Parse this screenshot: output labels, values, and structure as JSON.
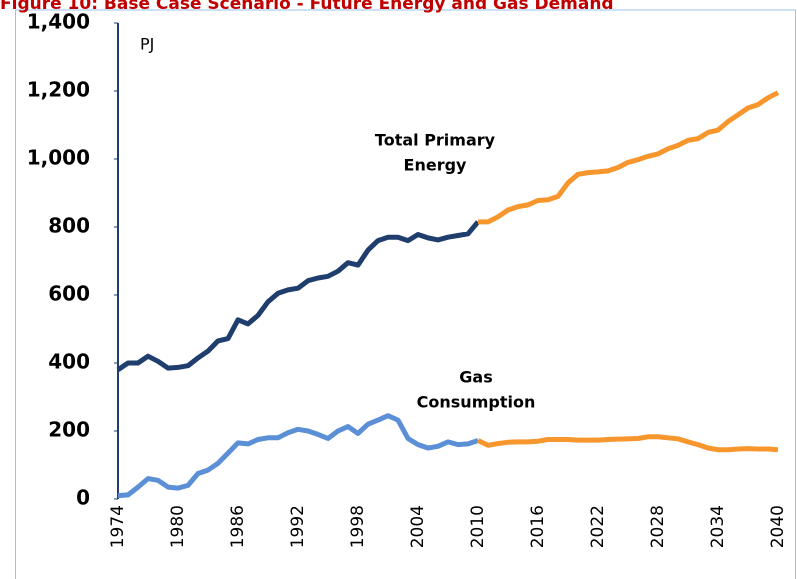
{
  "chart_data": {
    "type": "line",
    "title": "Figure 10: Base Case Scenario - Future Energy and Gas Demand",
    "y_unit": "PJ",
    "annotations": [
      [
        "Total Primary",
        "Energy"
      ],
      [
        "Gas",
        "Consumption"
      ]
    ],
    "xlim": [
      1974,
      2040
    ],
    "xticks": [
      1974,
      1980,
      1986,
      1992,
      1998,
      2004,
      2010,
      2016,
      2022,
      2028,
      2034,
      2040
    ],
    "ylim": [
      0,
      1400
    ],
    "yticks": [
      0,
      200,
      400,
      600,
      800,
      {
        "value": 1000,
        "label": "1,000"
      },
      {
        "value": 1200,
        "label": "1,200"
      },
      {
        "value": 1400,
        "label": "1,400"
      }
    ],
    "grid": false,
    "series": [
      {
        "color": "#1f3e6e",
        "x": [
          1974,
          1975,
          1976,
          1977,
          1978,
          1979,
          1980,
          1981,
          1982,
          1983,
          1984,
          1985,
          1986,
          1987,
          1988,
          1989,
          1990,
          1991,
          1992,
          1993,
          1994,
          1995,
          1996,
          1997,
          1998,
          1999,
          2000,
          2001,
          2002,
          2003,
          2004,
          2005,
          2006,
          2007,
          2008,
          2009,
          2010
        ],
        "values": [
          380,
          400,
          400,
          420,
          405,
          385,
          387,
          392,
          415,
          435,
          465,
          472,
          527,
          515,
          540,
          580,
          605,
          615,
          620,
          642,
          650,
          655,
          670,
          695,
          688,
          732,
          760,
          770,
          770,
          760,
          778,
          768,
          762,
          770,
          775,
          780,
          815
        ]
      },
      {
        "color": "#f7962d",
        "x": [
          2010,
          2011,
          2012,
          2013,
          2014,
          2015,
          2016,
          2017,
          2018,
          2019,
          2020,
          2021,
          2022,
          2023,
          2024,
          2025,
          2026,
          2027,
          2028,
          2029,
          2030,
          2031,
          2032,
          2033,
          2034,
          2035,
          2036,
          2037,
          2038,
          2039,
          2040
        ],
        "values": [
          815,
          815,
          830,
          850,
          860,
          865,
          878,
          880,
          890,
          930,
          955,
          960,
          962,
          965,
          975,
          990,
          998,
          1008,
          1015,
          1030,
          1040,
          1055,
          1060,
          1078,
          1085,
          1110,
          1130,
          1150,
          1160,
          1180,
          1195
        ]
      },
      {
        "color": "#5b8fd6",
        "x": [
          1974,
          1975,
          1976,
          1977,
          1978,
          1979,
          1980,
          1981,
          1982,
          1983,
          1984,
          1985,
          1986,
          1987,
          1988,
          1989,
          1990,
          1991,
          1992,
          1993,
          1994,
          1995,
          1996,
          1997,
          1998,
          1999,
          2000,
          2001,
          2002,
          2003,
          2004,
          2005,
          2006,
          2007,
          2008,
          2009,
          2010
        ],
        "values": [
          10,
          12,
          35,
          60,
          55,
          35,
          32,
          40,
          75,
          85,
          105,
          135,
          165,
          162,
          175,
          180,
          180,
          195,
          205,
          200,
          190,
          178,
          200,
          213,
          193,
          220,
          232,
          245,
          232,
          178,
          160,
          150,
          155,
          168,
          160,
          162,
          172
        ]
      },
      {
        "color": "#f7962d",
        "x": [
          2010,
          2011,
          2012,
          2013,
          2014,
          2015,
          2016,
          2017,
          2018,
          2019,
          2020,
          2021,
          2022,
          2023,
          2024,
          2025,
          2026,
          2027,
          2028,
          2029,
          2030,
          2031,
          2032,
          2033,
          2034,
          2035,
          2036,
          2037,
          2038,
          2039,
          2040
        ],
        "values": [
          172,
          158,
          163,
          167,
          168,
          168,
          170,
          175,
          175,
          175,
          173,
          173,
          173,
          175,
          176,
          177,
          178,
          183,
          183,
          180,
          177,
          168,
          160,
          150,
          145,
          145,
          147,
          148,
          147,
          147,
          145
        ]
      }
    ]
  }
}
